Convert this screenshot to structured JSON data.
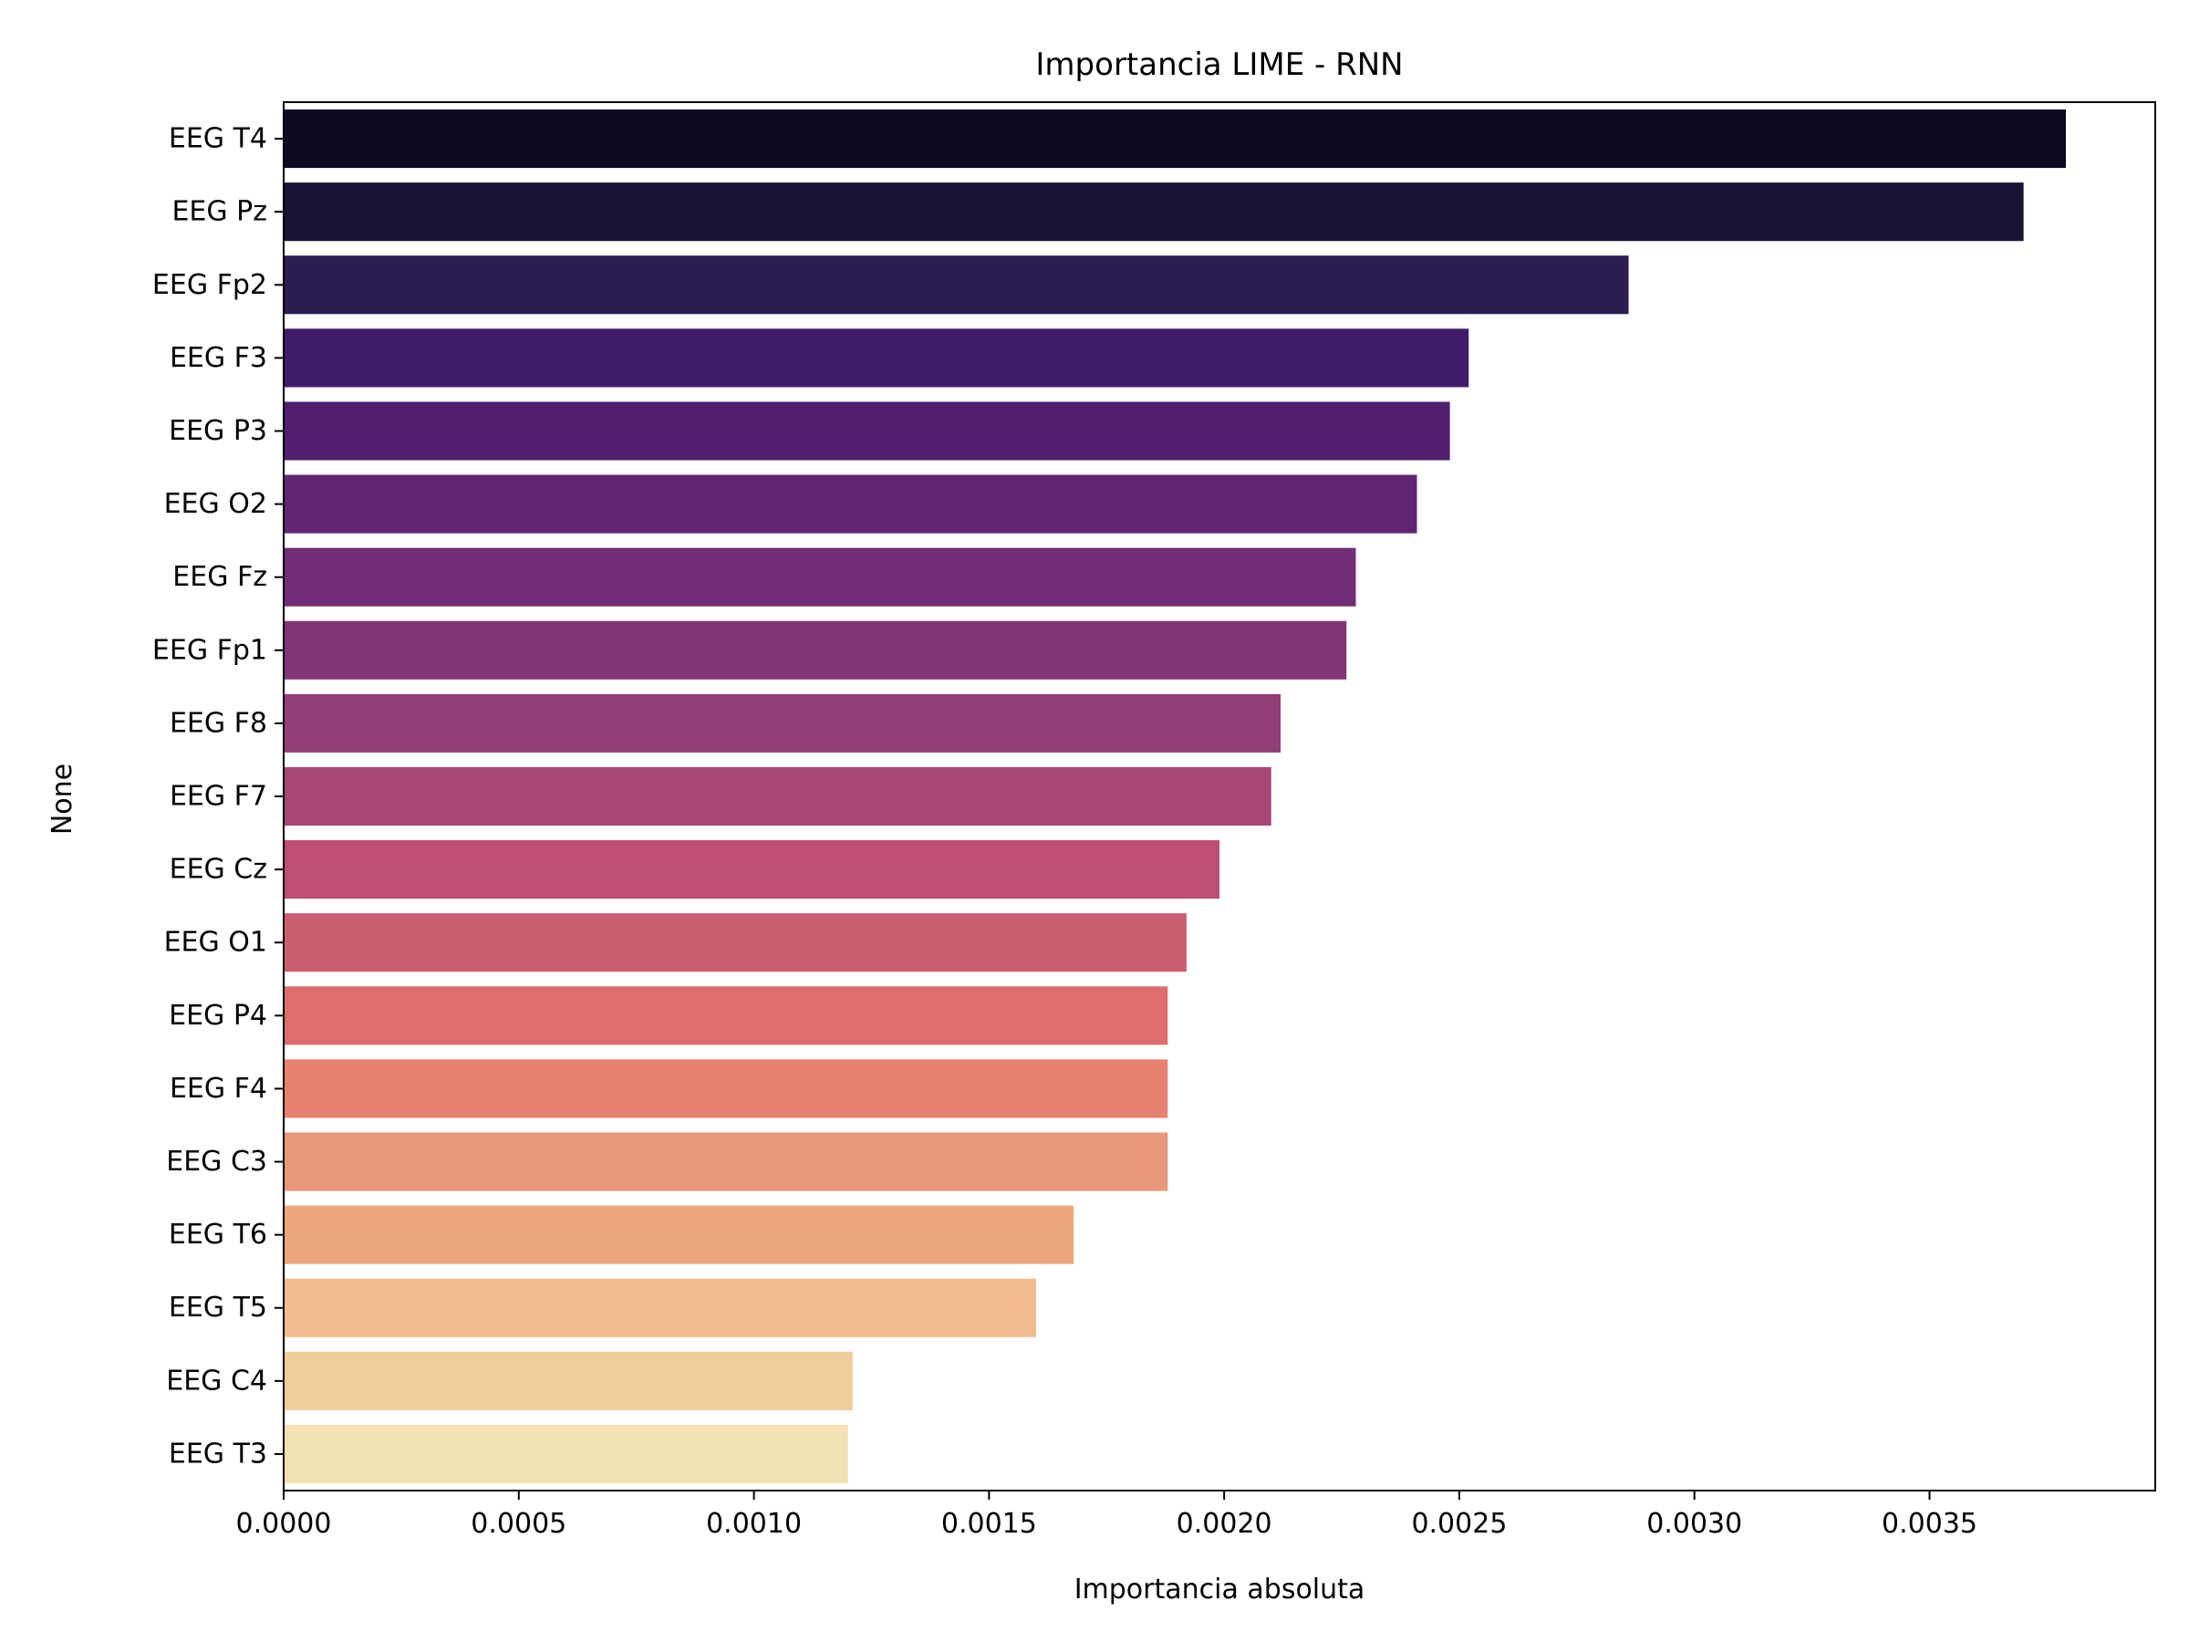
{
  "chart_data": {
    "type": "bar",
    "orientation": "horizontal",
    "title": "Importancia LIME - RNN",
    "xlabel": "Importancia absoluta",
    "ylabel": "None",
    "xlim": [
      0,
      0.00398
    ],
    "xticks": [
      0,
      0.0005,
      0.001,
      0.0015,
      0.002,
      0.0025,
      0.003,
      0.0035
    ],
    "xtick_labels": [
      "0.0000",
      "0.0005",
      "0.0010",
      "0.0015",
      "0.0020",
      "0.0025",
      "0.0030",
      "0.0035"
    ],
    "grid": false,
    "legend": "none",
    "categories": [
      "EEG T4",
      "EEG Pz",
      "EEG Fp2",
      "EEG F3",
      "EEG P3",
      "EEG O2",
      "EEG Fz",
      "EEG Fp1",
      "EEG F8",
      "EEG F7",
      "EEG Cz",
      "EEG O1",
      "EEG P4",
      "EEG F4",
      "EEG C3",
      "EEG T6",
      "EEG T5",
      "EEG C4",
      "EEG T3"
    ],
    "values": [
      0.00379,
      0.0037,
      0.00286,
      0.00252,
      0.00248,
      0.00241,
      0.00228,
      0.00226,
      0.00212,
      0.0021,
      0.00199,
      0.00192,
      0.00188,
      0.00188,
      0.00188,
      0.00168,
      0.0016,
      0.00121,
      0.0012
    ],
    "colors": [
      "#0b0924",
      "#1a1336",
      "#2b1c52",
      "#3f1b6a",
      "#501f6e",
      "#612572",
      "#712d75",
      "#803575",
      "#943e77",
      "#a84675",
      "#be4e72",
      "#cc5e71",
      "#dd6e6c",
      "#e6816f",
      "#e9977a",
      "#eca77f",
      "#efbb8e",
      "#f1cd9c",
      "#f3e1b1"
    ]
  }
}
